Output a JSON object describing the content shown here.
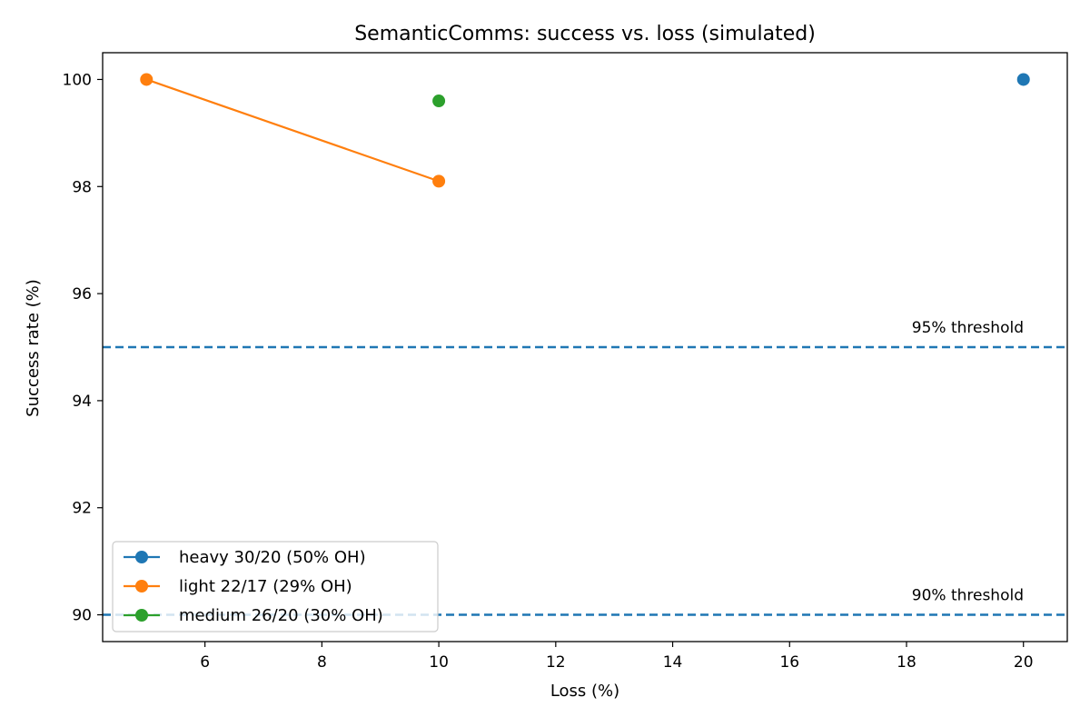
{
  "chart_data": {
    "type": "line",
    "title": "SemanticComms: success vs. loss (simulated)",
    "xlabel": "Loss (%)",
    "ylabel": "Success rate (%)",
    "xlim": [
      4.25,
      20.75
    ],
    "ylim": [
      89.5,
      100.5
    ],
    "xticks": [
      6,
      8,
      10,
      12,
      14,
      16,
      18,
      20
    ],
    "yticks": [
      90,
      92,
      94,
      96,
      98,
      100
    ],
    "grid": false,
    "legend_position": "lower-left",
    "series": [
      {
        "name": "heavy 30/20 (50% OH)",
        "color": "#1f77b4",
        "points": [
          [
            20,
            100.0
          ]
        ]
      },
      {
        "name": "light 22/17 (29% OH)",
        "color": "#ff7f0e",
        "points": [
          [
            5,
            100.0
          ],
          [
            10,
            98.1
          ]
        ]
      },
      {
        "name": "medium 26/20 (30% OH)",
        "color": "#2ca02c",
        "points": [
          [
            10,
            99.6
          ]
        ]
      }
    ],
    "reference_lines": [
      {
        "y": 95,
        "label": "95% threshold",
        "color": "#1f77b4",
        "style": "dashed"
      },
      {
        "y": 90,
        "label": "90% threshold",
        "color": "#1f77b4",
        "style": "dashed"
      }
    ]
  }
}
